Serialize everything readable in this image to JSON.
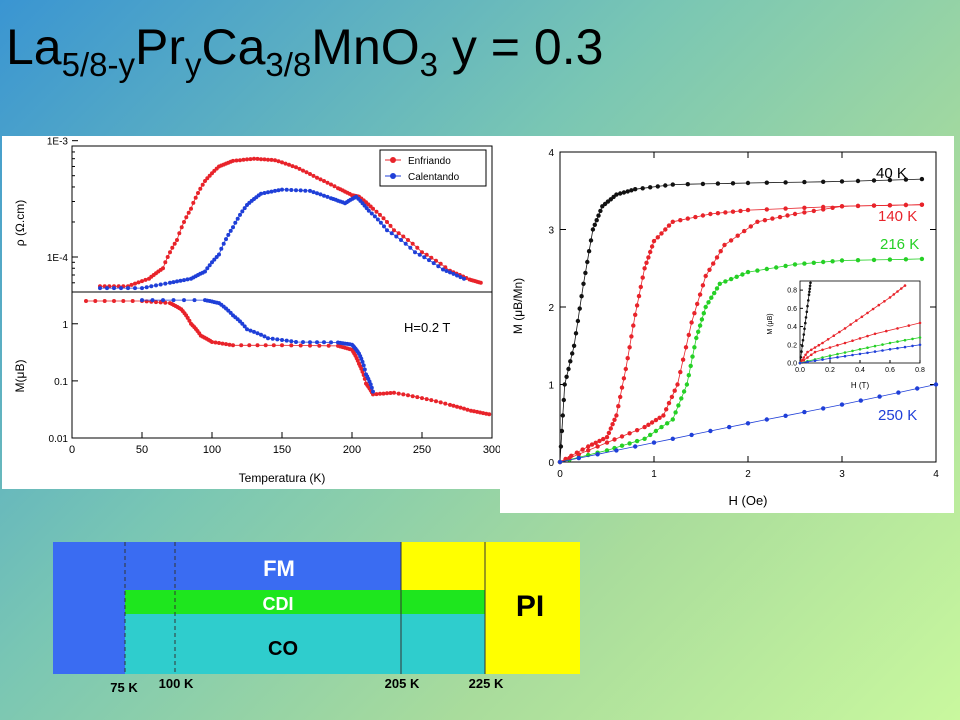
{
  "title": {
    "el1": "La",
    "sub1": "5/8-y",
    "el2": "Pr",
    "sub2": "y",
    "el3": "Ca",
    "sub3": "3/8",
    "el4": "MnO",
    "sub4": "3",
    "tail": " y = 0.3"
  },
  "colors": {
    "red": "#e8232a",
    "blue": "#1f3fd8",
    "green": "#25d025",
    "black": "#111111"
  },
  "chart_data": [
    {
      "type": "line",
      "name_note": "resistivity vs temperature",
      "xlim": [
        0,
        300
      ],
      "yscale": "log",
      "ylim": [
        5e-05,
        0.0009
      ],
      "yticks": [
        "1E-4",
        "1E-3"
      ],
      "ylabel": "ρ (Ω.cm)",
      "legend": {
        "placement": "top-right",
        "entries": [
          {
            "label": "Enfriando",
            "color": "#e8232a"
          },
          {
            "label": "Calentando",
            "color": "#1f3fd8"
          }
        ]
      },
      "series": [
        {
          "name": "Enfriando",
          "color": "#e8232a",
          "points": [
            [
              20,
              5.6e-05
            ],
            [
              40,
              5.6e-05
            ],
            [
              55,
              6.5e-05
            ],
            [
              65,
              8e-05
            ],
            [
              75,
              0.00014
            ],
            [
              85,
              0.00026
            ],
            [
              95,
              0.00045
            ],
            [
              105,
              0.0006
            ],
            [
              115,
              0.00067
            ],
            [
              130,
              0.0007
            ],
            [
              145,
              0.00068
            ],
            [
              160,
              0.00059
            ],
            [
              175,
              0.00048
            ],
            [
              190,
              0.00039
            ],
            [
              200,
              0.00034
            ],
            [
              205,
              0.00033
            ],
            [
              215,
              0.00026
            ],
            [
              230,
              0.00017
            ],
            [
              250,
              0.00011
            ],
            [
              270,
              7.6e-05
            ],
            [
              284,
              6.4e-05
            ],
            [
              292,
              6e-05
            ]
          ]
        },
        {
          "name": "Calentando",
          "color": "#1f3fd8",
          "points": [
            [
              20,
              5.4e-05
            ],
            [
              50,
              5.4e-05
            ],
            [
              70,
              6e-05
            ],
            [
              85,
              6.5e-05
            ],
            [
              95,
              7.5e-05
            ],
            [
              105,
              0.000105
            ],
            [
              115,
              0.00018
            ],
            [
              125,
              0.00028
            ],
            [
              135,
              0.00035
            ],
            [
              150,
              0.00038
            ],
            [
              170,
              0.00037
            ],
            [
              185,
              0.00032
            ],
            [
              195,
              0.00029
            ],
            [
              203,
              0.00033
            ],
            [
              212,
              0.00025
            ],
            [
              225,
              0.00017
            ],
            [
              245,
              0.00011
            ],
            [
              265,
              7.8e-05
            ],
            [
              280,
              6.5e-05
            ]
          ]
        }
      ]
    },
    {
      "type": "line",
      "name_note": "magnetization vs temperature",
      "xlim": [
        0,
        300
      ],
      "yscale": "log",
      "ylim": [
        0.01,
        3.6
      ],
      "xticks": [
        0,
        50,
        100,
        150,
        200,
        250,
        300
      ],
      "yticks": [
        "0.01",
        "0.1",
        "1"
      ],
      "xlabel": "Temperatura (K)",
      "ylabel": "M(μB)",
      "annotation": "H=0.2 T",
      "series": [
        {
          "name": "Enfriando",
          "color": "#e8232a",
          "points": [
            [
              10,
              2.5
            ],
            [
              50,
              2.5
            ],
            [
              70,
              2.3
            ],
            [
              78,
              1.8
            ],
            [
              85,
              1.0
            ],
            [
              92,
              0.62
            ],
            [
              100,
              0.48
            ],
            [
              115,
              0.42
            ],
            [
              150,
              0.42
            ],
            [
              190,
              0.41
            ],
            [
              200,
              0.35
            ],
            [
              205,
              0.2
            ],
            [
              210,
              0.09
            ],
            [
              215,
              0.058
            ],
            [
              230,
              0.062
            ],
            [
              250,
              0.05
            ],
            [
              270,
              0.038
            ],
            [
              285,
              0.03
            ],
            [
              298,
              0.026
            ]
          ]
        },
        {
          "name": "Calentando",
          "color": "#1f3fd8",
          "points": [
            [
              50,
              2.6
            ],
            [
              95,
              2.6
            ],
            [
              105,
              2.3
            ],
            [
              115,
              1.4
            ],
            [
              125,
              0.8
            ],
            [
              140,
              0.56
            ],
            [
              160,
              0.48
            ],
            [
              190,
              0.47
            ],
            [
              200,
              0.43
            ],
            [
              205,
              0.3
            ],
            [
              210,
              0.13
            ],
            [
              215,
              0.065
            ]
          ]
        }
      ]
    },
    {
      "type": "line",
      "name_note": "magnetization vs field",
      "xlim": [
        0,
        4
      ],
      "ylim": [
        0,
        4
      ],
      "xticks": [
        0,
        1,
        2,
        3,
        4
      ],
      "yticks": [
        0,
        1,
        2,
        3,
        4
      ],
      "xlabel": "H (Oe)",
      "ylabel": "M (μB/Mn)",
      "series": [
        {
          "name": "40 K",
          "color": "#111111",
          "labelColor": "#111111",
          "points": [
            [
              0,
              0
            ],
            [
              0.05,
              1
            ],
            [
              0.15,
              1.5
            ],
            [
              0.25,
              2.3
            ],
            [
              0.35,
              3.0
            ],
            [
              0.45,
              3.3
            ],
            [
              0.6,
              3.45
            ],
            [
              0.8,
              3.52
            ],
            [
              1.2,
              3.58
            ],
            [
              2,
              3.6
            ],
            [
              3,
              3.62
            ],
            [
              3.85,
              3.65
            ]
          ]
        },
        {
          "name": "140 K",
          "color": "#e8232a",
          "labelColor": "#e8232a",
          "points": [
            [
              0,
              0
            ],
            [
              0.3,
              0.2
            ],
            [
              0.5,
              0.32
            ],
            [
              0.6,
              0.6
            ],
            [
              0.7,
              1.2
            ],
            [
              0.8,
              1.9
            ],
            [
              0.9,
              2.5
            ],
            [
              1.0,
              2.85
            ],
            [
              1.2,
              3.1
            ],
            [
              1.6,
              3.2
            ],
            [
              2,
              3.25
            ],
            [
              3,
              3.3
            ],
            [
              3.85,
              3.32
            ]
          ]
        },
        {
          "name": "216 K",
          "color": "#25d025",
          "labelColor": "#25d025",
          "points": [
            [
              0,
              0
            ],
            [
              0.5,
              0.15
            ],
            [
              0.9,
              0.3
            ],
            [
              1.2,
              0.55
            ],
            [
              1.35,
              1.0
            ],
            [
              1.45,
              1.6
            ],
            [
              1.55,
              2.0
            ],
            [
              1.7,
              2.3
            ],
            [
              2,
              2.45
            ],
            [
              2.5,
              2.55
            ],
            [
              3,
              2.6
            ],
            [
              3.85,
              2.62
            ]
          ]
        },
        {
          "name": "red-up",
          "color": "#e8232a",
          "points": [
            [
              0,
              0
            ],
            [
              0.5,
              0.25
            ],
            [
              0.9,
              0.45
            ],
            [
              1.1,
              0.6
            ],
            [
              1.25,
              1.0
            ],
            [
              1.4,
              1.8
            ],
            [
              1.55,
              2.4
            ],
            [
              1.75,
              2.8
            ],
            [
              2.1,
              3.1
            ],
            [
              2.5,
              3.2
            ],
            [
              3,
              3.3
            ],
            [
              3.85,
              3.32
            ]
          ]
        },
        {
          "name": "250 K",
          "color": "#1f3fd8",
          "labelColor": "#1f3fd8",
          "points": [
            [
              0,
              0
            ],
            [
              1,
              0.25
            ],
            [
              2,
              0.5
            ],
            [
              3,
              0.74
            ],
            [
              4,
              1.0
            ]
          ]
        }
      ],
      "inset": {
        "xlim": [
          0,
          0.8
        ],
        "ylim": [
          0,
          0.9
        ],
        "xticks": [
          "0.0",
          "0.2",
          "0.4",
          "0.6",
          "0.8"
        ],
        "yticks": [
          "0.0",
          "0.2",
          "0.4",
          "0.6",
          "0.8"
        ],
        "xlabel": "H (T)",
        "ylabel": "M (μB)"
      }
    }
  ],
  "phase_diagram": {
    "labels": {
      "fm": "FM",
      "cdi": "CDI",
      "co": "CO",
      "pi": "PI"
    },
    "ticks": [
      "75 K",
      "100 K",
      "205 K",
      "225 K"
    ],
    "colors": {
      "fm": "#3a6cf2",
      "cdi": "#1ee61e",
      "co": "#2fcdcd",
      "pi": "#ffff00"
    }
  }
}
